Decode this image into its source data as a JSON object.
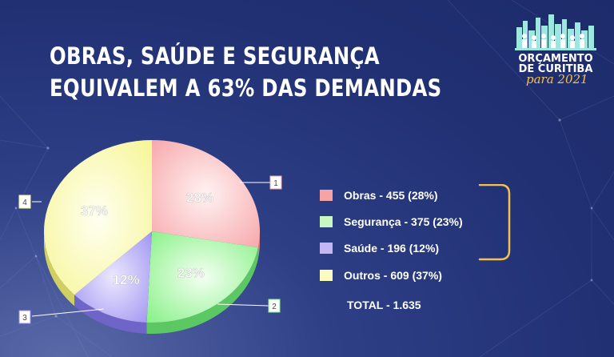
{
  "header": {
    "title_line1": "OBRAS, SAÚDE E SEGURANÇA",
    "title_line2": "EQUIVALEM A 63% DAS DEMANDAS"
  },
  "logo": {
    "line1": "ORÇAMENTO",
    "line2": "DE CURITIBA",
    "line3": "para 2021"
  },
  "colors": {
    "background": "#213073",
    "obras": "#f7a3a6",
    "seguranca": "#7ff07f",
    "saude": "#9a8ef0",
    "outros": "#f6f58f",
    "accent": "#f2c14e"
  },
  "chart_data": {
    "type": "pie",
    "slices": [
      {
        "label": "Obras",
        "value": 455,
        "percent": 28,
        "percent_label": "28%",
        "callout": "1"
      },
      {
        "label": "Segurança",
        "value": 375,
        "percent": 23,
        "percent_label": "23%",
        "callout": "2"
      },
      {
        "label": "Saúde",
        "value": 196,
        "percent": 12,
        "percent_label": "12%",
        "callout": "3"
      },
      {
        "label": "Outros",
        "value": 609,
        "percent": 37,
        "percent_label": "37%",
        "callout": "4"
      }
    ],
    "legend": [
      "Obras - 455 (28%)",
      "Segurança - 375 (23%)",
      "Saúde - 196 (12%)",
      "Outros - 609 (37%)"
    ],
    "legend_position": "right",
    "total_label": "TOTAL - 1.635"
  }
}
